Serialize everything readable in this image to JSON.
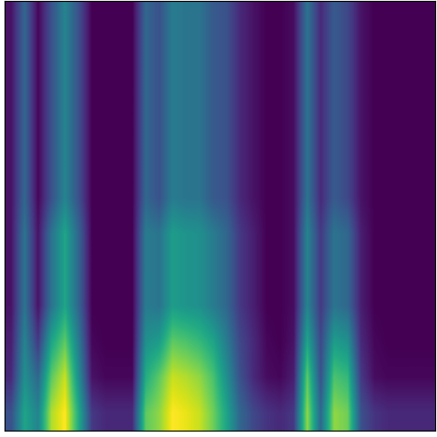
{
  "chart_data": {
    "type": "heatmap",
    "color": "viridis",
    "tick_labels": false,
    "cells": [
      [
        0.5,
        0.7,
        0.62,
        0.88,
        0.95,
        0.72,
        0.45,
        0.42,
        0.42,
        0.42,
        0.8,
        0.85,
        0.95,
        0.93,
        0.9,
        0.82,
        0.7,
        0.55,
        0.48,
        0.44,
        0.42,
        0.45,
        0.85,
        0.55,
        0.85,
        0.82,
        0.5,
        0.44,
        0.42,
        0.42,
        0.42,
        0.42
      ],
      [
        0.42,
        0.65,
        0.55,
        0.8,
        0.9,
        0.65,
        0.38,
        0.36,
        0.36,
        0.36,
        0.72,
        0.8,
        0.9,
        0.88,
        0.85,
        0.78,
        0.65,
        0.5,
        0.42,
        0.37,
        0.36,
        0.4,
        0.8,
        0.5,
        0.78,
        0.75,
        0.45,
        0.37,
        0.36,
        0.36,
        0.36,
        0.36
      ],
      [
        0.4,
        0.62,
        0.45,
        0.7,
        0.8,
        0.6,
        0.36,
        0.35,
        0.35,
        0.35,
        0.65,
        0.68,
        0.8,
        0.78,
        0.75,
        0.7,
        0.6,
        0.48,
        0.42,
        0.36,
        0.35,
        0.38,
        0.7,
        0.48,
        0.68,
        0.65,
        0.42,
        0.36,
        0.35,
        0.35,
        0.35,
        0.35
      ],
      [
        0.38,
        0.58,
        0.38,
        0.58,
        0.7,
        0.55,
        0.35,
        0.35,
        0.35,
        0.35,
        0.6,
        0.58,
        0.68,
        0.66,
        0.65,
        0.6,
        0.55,
        0.45,
        0.4,
        0.35,
        0.35,
        0.37,
        0.62,
        0.45,
        0.58,
        0.55,
        0.4,
        0.35,
        0.35,
        0.35,
        0.35,
        0.35
      ],
      [
        0.38,
        0.58,
        0.38,
        0.58,
        0.7,
        0.55,
        0.35,
        0.35,
        0.35,
        0.35,
        0.6,
        0.58,
        0.68,
        0.66,
        0.65,
        0.6,
        0.55,
        0.45,
        0.4,
        0.35,
        0.35,
        0.37,
        0.62,
        0.45,
        0.58,
        0.55,
        0.4,
        0.35,
        0.35,
        0.35,
        0.35,
        0.35
      ],
      [
        0.38,
        0.58,
        0.38,
        0.58,
        0.7,
        0.55,
        0.35,
        0.35,
        0.35,
        0.35,
        0.6,
        0.58,
        0.68,
        0.66,
        0.65,
        0.6,
        0.55,
        0.45,
        0.4,
        0.35,
        0.35,
        0.37,
        0.62,
        0.45,
        0.58,
        0.55,
        0.4,
        0.35,
        0.35,
        0.35,
        0.35,
        0.35
      ],
      [
        0.38,
        0.55,
        0.36,
        0.5,
        0.62,
        0.5,
        0.35,
        0.35,
        0.35,
        0.35,
        0.55,
        0.5,
        0.6,
        0.58,
        0.58,
        0.52,
        0.5,
        0.42,
        0.38,
        0.35,
        0.35,
        0.37,
        0.58,
        0.42,
        0.52,
        0.48,
        0.38,
        0.35,
        0.35,
        0.35,
        0.35,
        0.35
      ],
      [
        0.38,
        0.55,
        0.36,
        0.5,
        0.62,
        0.5,
        0.35,
        0.35,
        0.35,
        0.35,
        0.55,
        0.5,
        0.6,
        0.58,
        0.58,
        0.52,
        0.5,
        0.42,
        0.38,
        0.35,
        0.35,
        0.37,
        0.58,
        0.42,
        0.52,
        0.48,
        0.38,
        0.35,
        0.35,
        0.35,
        0.35,
        0.35
      ],
      [
        0.38,
        0.55,
        0.36,
        0.5,
        0.62,
        0.5,
        0.35,
        0.35,
        0.35,
        0.35,
        0.55,
        0.5,
        0.6,
        0.58,
        0.58,
        0.52,
        0.5,
        0.42,
        0.38,
        0.35,
        0.35,
        0.37,
        0.58,
        0.42,
        0.52,
        0.48,
        0.38,
        0.35,
        0.35,
        0.35,
        0.35,
        0.35
      ],
      [
        0.38,
        0.55,
        0.36,
        0.5,
        0.62,
        0.5,
        0.35,
        0.35,
        0.35,
        0.35,
        0.55,
        0.5,
        0.6,
        0.58,
        0.58,
        0.52,
        0.5,
        0.42,
        0.38,
        0.35,
        0.35,
        0.37,
        0.58,
        0.42,
        0.52,
        0.48,
        0.38,
        0.35,
        0.35,
        0.35,
        0.35,
        0.35
      ],
      [
        0.38,
        0.55,
        0.36,
        0.5,
        0.62,
        0.5,
        0.35,
        0.35,
        0.35,
        0.35,
        0.55,
        0.5,
        0.6,
        0.58,
        0.58,
        0.52,
        0.5,
        0.42,
        0.38,
        0.35,
        0.35,
        0.37,
        0.58,
        0.42,
        0.52,
        0.48,
        0.38,
        0.35,
        0.35,
        0.35,
        0.35,
        0.35
      ],
      [
        0.38,
        0.55,
        0.36,
        0.5,
        0.62,
        0.5,
        0.35,
        0.35,
        0.35,
        0.35,
        0.55,
        0.5,
        0.6,
        0.58,
        0.58,
        0.52,
        0.5,
        0.42,
        0.38,
        0.35,
        0.35,
        0.37,
        0.58,
        0.42,
        0.52,
        0.48,
        0.38,
        0.35,
        0.35,
        0.35,
        0.35,
        0.35
      ]
    ]
  }
}
